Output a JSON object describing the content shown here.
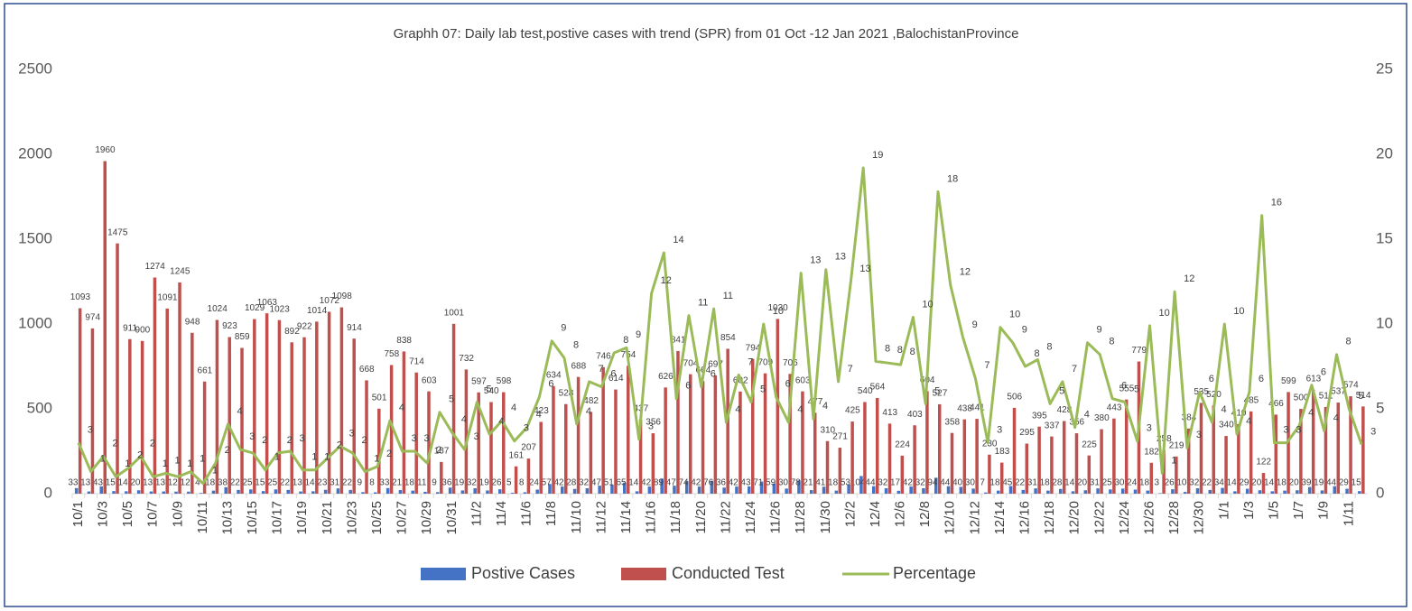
{
  "chart_data": {
    "type": "bar",
    "title": "Graphh 07: Daily lab test,postive cases with trend (SPR) from 01 Oct -12 Jan 2021 ,BalochistanProvince",
    "categories": [
      "10/1",
      null,
      "10/3",
      null,
      "10/5",
      null,
      "10/7",
      null,
      "10/9",
      null,
      "10/11",
      null,
      "10/13",
      null,
      "10/15",
      null,
      "10/17",
      null,
      "10/19",
      null,
      "10/21",
      null,
      "10/23",
      null,
      "10/25",
      null,
      "10/27",
      null,
      "10/29",
      null,
      "10/31",
      null,
      "11/2",
      null,
      "11/4",
      null,
      "11/6",
      null,
      "11/8",
      null,
      "11/10",
      null,
      "11/12",
      null,
      "11/14",
      null,
      "11/16",
      null,
      "11/18",
      null,
      "11/20",
      null,
      "11/22",
      null,
      "11/24",
      null,
      "11/26",
      null,
      "11/28",
      null,
      "11/30",
      null,
      "12/2",
      null,
      "12/4",
      null,
      "12/6",
      null,
      "12/8",
      null,
      "12/10",
      null,
      "12/12",
      null,
      "12/14",
      null,
      "12/16",
      null,
      "12/18",
      null,
      "12/20",
      null,
      "12/22",
      null,
      "12/24",
      null,
      "12/26",
      null,
      "12/28",
      null,
      "12/30",
      null,
      "1/1",
      null,
      "1/3",
      null,
      "1/5",
      null,
      "1/7",
      null,
      "1/9",
      null,
      "1/11",
      null
    ],
    "series": [
      {
        "name": "Postive Cases",
        "color": "#4472c4",
        "values": [
          33,
          13,
          43,
          15,
          14,
          20,
          13,
          13,
          12,
          12,
          4,
          18,
          38,
          22,
          25,
          15,
          25,
          22,
          13,
          14,
          23,
          31,
          22,
          9,
          8,
          33,
          21,
          18,
          11,
          9,
          36,
          19,
          32,
          19,
          26,
          5,
          8,
          24,
          57,
          42,
          28,
          32,
          47,
          51,
          65,
          14,
          42,
          89,
          47,
          74,
          42,
          76,
          36,
          42,
          43,
          71,
          59,
          30,
          78,
          21,
          41,
          18,
          53,
          104,
          44,
          32,
          17,
          42,
          32,
          94,
          44,
          40,
          30,
          7,
          18,
          45,
          22,
          31,
          18,
          28,
          14,
          20,
          31,
          25,
          30,
          24,
          18,
          3,
          26,
          10,
          32,
          22,
          34,
          14,
          29,
          20,
          14,
          18,
          20,
          39,
          19,
          44,
          29,
          15
        ]
      },
      {
        "name": "Conducted Test",
        "color": "#c0504d",
        "values": [
          1093,
          974,
          1960,
          1475,
          911,
          900,
          1274,
          1091,
          1245,
          948,
          661,
          1024,
          923,
          859,
          1029,
          1063,
          1023,
          892,
          922,
          1014,
          1072,
          1098,
          914,
          668,
          501,
          758,
          838,
          714,
          603,
          187,
          1001,
          732,
          597,
          540,
          598,
          161,
          207,
          423,
          634,
          528,
          688,
          482,
          746,
          614,
          754,
          437,
          356,
          626,
          841,
          704,
          664,
          697,
          854,
          602,
          794,
          709,
          1030,
          706,
          603,
          477,
          310,
          271,
          425,
          540,
          564,
          413,
          224,
          403,
          604,
          527,
          358,
          438,
          441,
          230,
          183,
          506,
          295,
          395,
          337,
          428,
          356,
          225,
          380,
          443,
          555,
          779,
          182,
          258,
          219,
          384,
          535,
          520,
          340,
          410,
          485,
          122,
          466,
          599,
          500,
          613,
          511,
          537,
          574,
          514
        ]
      },
      {
        "name": "Percentage",
        "color": "#9bbb59",
        "type": "line",
        "axis": "y2",
        "values": [
          3,
          1.3,
          2.2,
          1,
          1.5,
          2.2,
          1,
          1.2,
          1,
          1.3,
          0.6,
          1.8,
          4.1,
          2.6,
          2.4,
          1.4,
          2.4,
          2.5,
          1.4,
          1.4,
          2.1,
          2.8,
          2.4,
          1.3,
          1.6,
          4.3,
          2.5,
          2.5,
          1.8,
          4.8,
          3.6,
          2.6,
          5.4,
          3.5,
          4.3,
          3.1,
          3.9,
          5.7,
          9,
          8,
          4.1,
          6.6,
          6.3,
          8.3,
          8.6,
          3.2,
          11.8,
          14.2,
          5.6,
          10.5,
          6.3,
          10.9,
          4.2,
          7,
          5.4,
          10,
          5.7,
          4.2,
          13,
          4.4,
          13.2,
          6.6,
          12.5,
          19.2,
          7.8,
          7.7,
          7.6,
          10.4,
          5.3,
          17.8,
          12.3,
          9.2,
          6.8,
          3,
          9.8,
          8.9,
          7.5,
          7.9,
          5.3,
          6.6,
          3.9,
          8.9,
          8.2,
          5.6,
          5.4,
          3.1,
          9.9,
          1.2,
          11.9,
          2.7,
          6,
          4.2,
          10,
          3.5,
          6,
          16.4,
          3,
          3,
          4,
          6.4,
          3.7,
          8.2,
          5,
          2.9
        ],
        "value_labels": [
          "3",
          "1",
          "2",
          "1",
          "2",
          "2",
          "1",
          "1",
          "1",
          "1",
          "1",
          "2",
          "4",
          "3",
          "2",
          "1",
          "2",
          "3",
          "1",
          "1",
          "2",
          "3",
          "2",
          "1",
          "2",
          "4",
          "3",
          "3",
          "2",
          "5",
          "4",
          "3",
          "5",
          "4",
          "4",
          "3",
          "4",
          "6",
          "9",
          "8",
          "4",
          "7",
          "6",
          "8",
          "9",
          "3",
          "12",
          "14",
          "6",
          "11",
          "6",
          "11",
          "4",
          "7",
          "5",
          "10",
          "6",
          "4",
          "13",
          "4",
          "13",
          "7",
          "13",
          "19",
          "8",
          "8",
          "8",
          "10",
          "5",
          "18",
          "12",
          "9",
          "7",
          "3",
          "10",
          "9",
          "8",
          "8",
          "5",
          "7",
          "4",
          "9",
          "8",
          "6",
          "5",
          "3",
          "10",
          "1",
          "12",
          "3",
          "6",
          "4",
          "10",
          "4",
          "6",
          "16",
          "3",
          "3",
          "4",
          "6",
          "4",
          "8",
          "5",
          "3"
        ]
      }
    ],
    "ylim": [
      0,
      2500
    ],
    "yticks": [
      0,
      500,
      1000,
      1500,
      2000,
      2500
    ],
    "y2lim": [
      0,
      25
    ],
    "y2ticks": [
      0,
      5,
      10,
      15,
      20,
      25
    ],
    "grid": false,
    "legend": "bottom"
  }
}
